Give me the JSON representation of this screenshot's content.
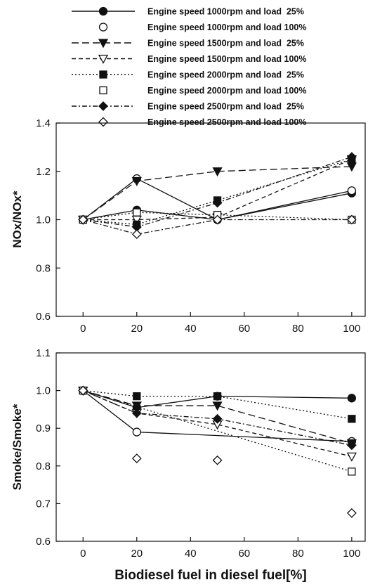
{
  "chart_data": [
    {
      "type": "line",
      "panel": "top",
      "xlabel": "",
      "ylabel": "NOx/NOx*",
      "xlim": [
        -10,
        105
      ],
      "ylim": [
        0.6,
        1.4
      ],
      "x_ticks": [
        "0",
        "20",
        "40",
        "60",
        "80",
        "100"
      ],
      "y_ticks": [
        "0.6",
        "0.8",
        "1.0",
        "1.2",
        "1.4"
      ],
      "grid": false,
      "x": [
        0,
        20,
        50,
        100
      ],
      "series": [
        {
          "name": "Engine speed 1000rpm and load 25%",
          "values": [
            1.0,
            1.04,
            1.0,
            1.11
          ],
          "marker": "circle-filled",
          "dash": "solid",
          "color": "#111111"
        },
        {
          "name": "Engine speed 1000rpm and load 100%",
          "values": [
            1.0,
            1.17,
            1.0,
            1.12
          ],
          "marker": "circle-open",
          "dash": "solid",
          "color": "#111111"
        },
        {
          "name": "Engine speed 1500rpm and load 25%",
          "values": [
            1.0,
            1.16,
            1.2,
            1.22
          ],
          "marker": "triangle-down-filled",
          "dash": "long-dash",
          "color": "#111111"
        },
        {
          "name": "Engine speed 1500rpm and load 100%",
          "values": [
            1.0,
            1.0,
            1.01,
            1.25
          ],
          "marker": "triangle-down-open",
          "dash": "dash",
          "color": "#111111"
        },
        {
          "name": "Engine speed 2000rpm and load 25%",
          "values": [
            1.0,
            0.98,
            1.08,
            1.25
          ],
          "marker": "square-filled",
          "dash": "dot",
          "color": "#111111"
        },
        {
          "name": "Engine speed 2000rpm and load 100%",
          "values": [
            1.0,
            1.03,
            1.02,
            1.0
          ],
          "marker": "square-open",
          "dash": "dot",
          "color": "#111111"
        },
        {
          "name": "Engine speed 2500rpm and load 25%",
          "values": [
            1.0,
            0.97,
            1.07,
            1.26
          ],
          "marker": "diamond-filled",
          "dash": "dash-dot",
          "color": "#111111"
        },
        {
          "name": "Engine speed 2500rpm and load 100%",
          "values": [
            1.0,
            0.94,
            1.0,
            1.0
          ],
          "marker": "diamond-open",
          "dash": "dash-dot",
          "color": "#111111"
        }
      ]
    },
    {
      "type": "line",
      "panel": "bottom",
      "xlabel": "Biodiesel fuel in diesel fuel[%]",
      "ylabel": "Smoke/Smoke*",
      "xlim": [
        -10,
        105
      ],
      "ylim": [
        0.6,
        1.1
      ],
      "x_ticks": [
        "0",
        "20",
        "40",
        "60",
        "80",
        "100"
      ],
      "y_ticks": [
        "0.6",
        "0.7",
        "0.8",
        "0.9",
        "1.0",
        "1.1"
      ],
      "grid": false,
      "x": [
        0,
        20,
        50,
        100
      ],
      "series": [
        {
          "name": "Engine speed 1000rpm and load 25%",
          "values": [
            1.0,
            0.955,
            0.985,
            0.98
          ],
          "marker": "circle-filled",
          "dash": "solid",
          "color": "#111111"
        },
        {
          "name": "Engine speed 1000rpm and load 100%",
          "values": [
            1.0,
            0.89,
            null,
            0.865
          ],
          "marker": "circle-open",
          "dash": "solid",
          "color": "#111111"
        },
        {
          "name": "Engine speed 1500rpm and load 25%",
          "values": [
            1.0,
            0.96,
            0.96,
            0.86
          ],
          "marker": "triangle-down-filled",
          "dash": "long-dash",
          "color": "#111111"
        },
        {
          "name": "Engine speed 1500rpm and load 100%",
          "values": [
            1.0,
            0.94,
            0.91,
            0.825
          ],
          "marker": "triangle-down-open",
          "dash": "dash",
          "color": "#111111"
        },
        {
          "name": "Engine speed 2000rpm and load 25%",
          "values": [
            1.0,
            0.985,
            0.985,
            0.925
          ],
          "marker": "square-filled",
          "dash": "dot",
          "color": "#111111"
        },
        {
          "name": "Engine speed 2000rpm and load 100%",
          "values": [
            1.0,
            null,
            null,
            0.785
          ],
          "marker": "square-open",
          "dash": "dot",
          "color": "#111111"
        },
        {
          "name": "Engine speed 2500rpm and load 25%",
          "values": [
            1.0,
            0.94,
            0.925,
            0.855
          ],
          "marker": "diamond-filled",
          "dash": "dash-dot",
          "color": "#111111"
        },
        {
          "name": "Engine speed 2500rpm and load 100%",
          "values": [
            1.0,
            0.82,
            0.815,
            0.675
          ],
          "marker": "diamond-open",
          "dash": "none",
          "color": "#111111"
        }
      ]
    }
  ],
  "legend": {
    "placement": "top",
    "items": [
      {
        "label": "Engine speed 1000rpm and load  25%",
        "marker": "circle-filled",
        "dash": "solid"
      },
      {
        "label": "Engine speed 1000rpm and load 100%",
        "marker": "circle-open",
        "dash": "none"
      },
      {
        "label": "Engine speed 1500rpm and load  25%",
        "marker": "triangle-down-filled",
        "dash": "long-dash"
      },
      {
        "label": "Engine speed 1500rpm and load 100%",
        "marker": "triangle-down-open",
        "dash": "dash"
      },
      {
        "label": "Engine speed 2000rpm and load  25%",
        "marker": "square-filled",
        "dash": "dot"
      },
      {
        "label": "Engine speed 2000rpm and load 100%",
        "marker": "square-open",
        "dash": "none"
      },
      {
        "label": "Engine speed 2500rpm and load  25%",
        "marker": "diamond-filled",
        "dash": "dash-dot"
      },
      {
        "label": "Engine speed 2500rpm and load 100%",
        "marker": "diamond-open",
        "dash": "none"
      }
    ]
  }
}
